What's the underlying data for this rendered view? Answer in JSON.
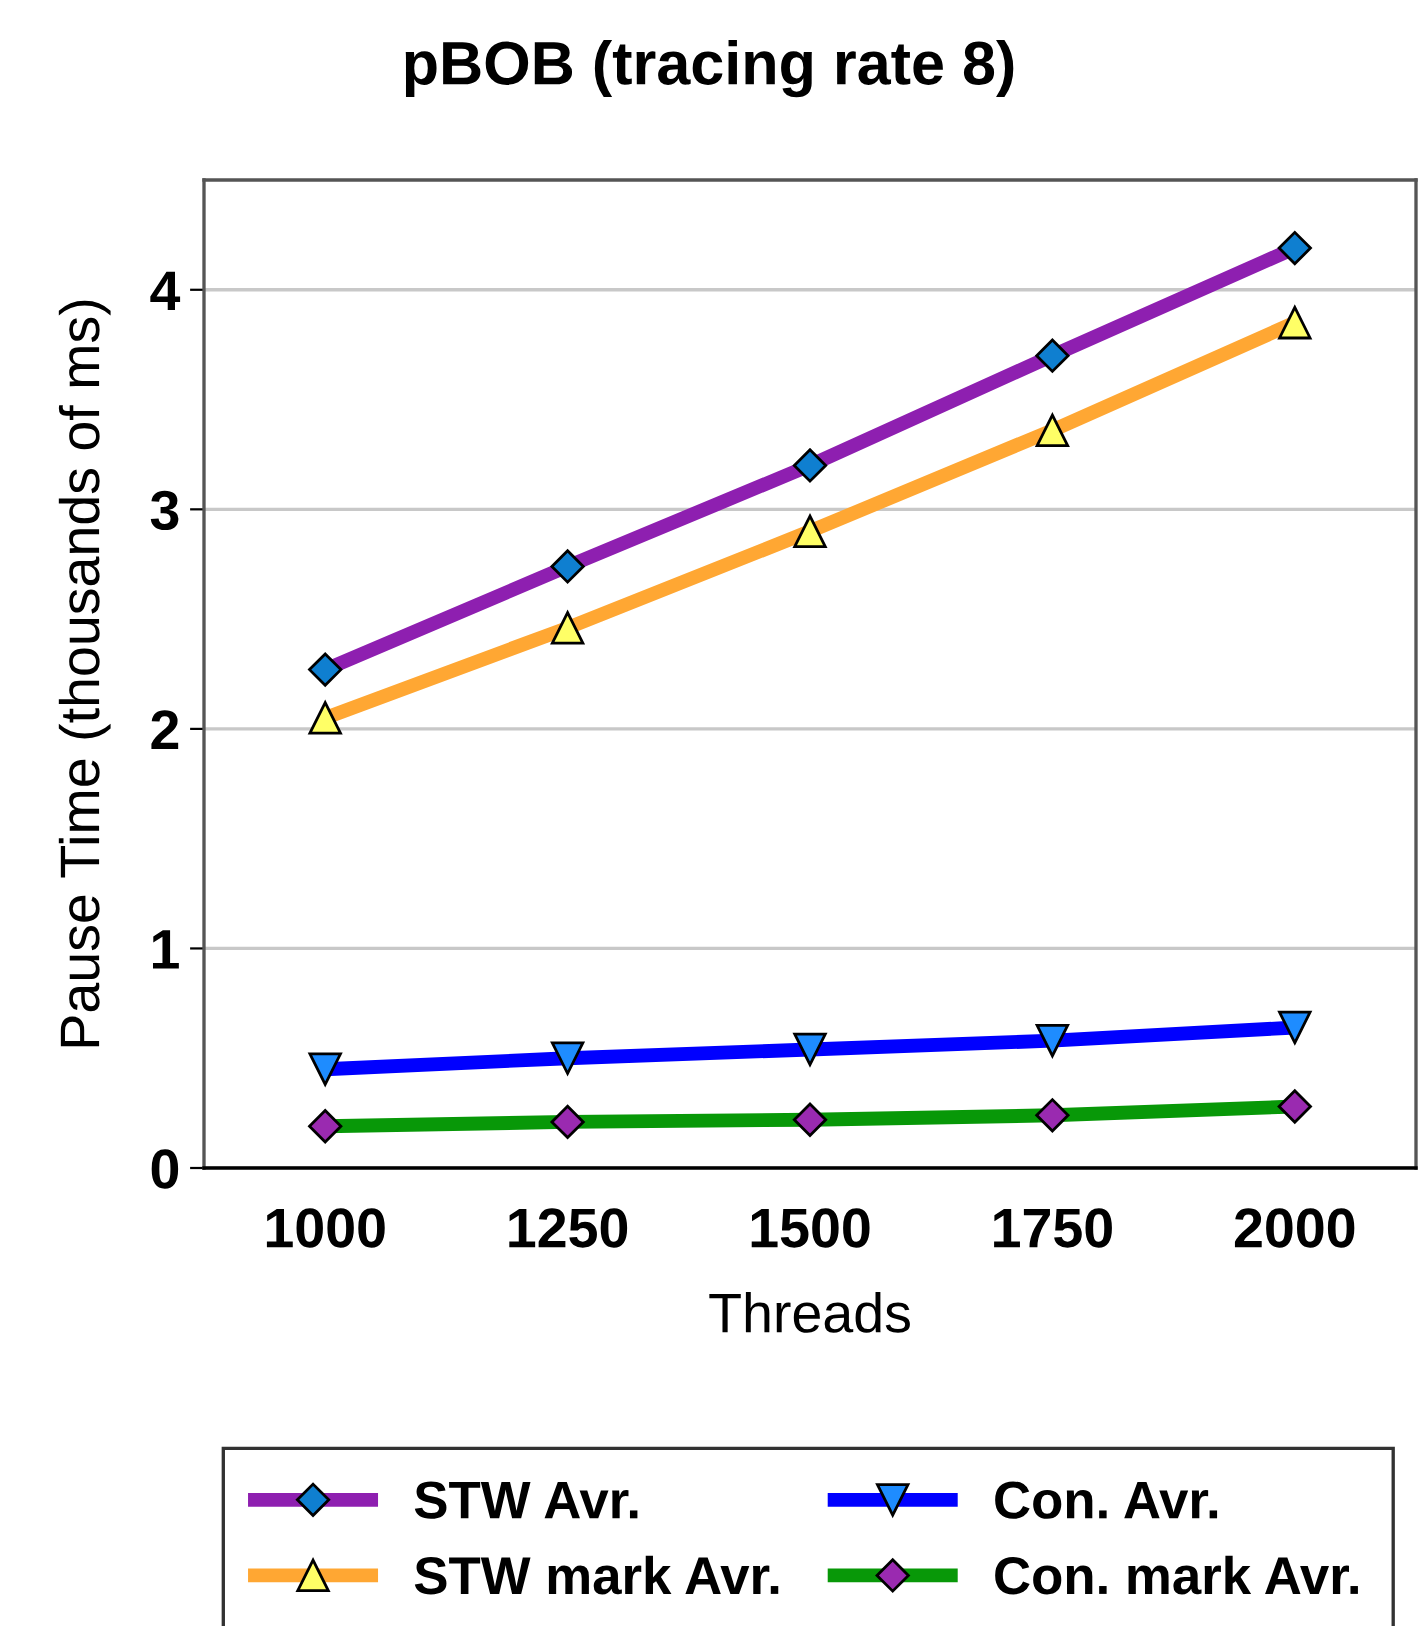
{
  "chart_data": {
    "type": "line",
    "title": "pBOB (tracing rate 8)",
    "xlabel": "Threads",
    "ylabel": "Pause Time (thousands of ms)",
    "categories": [
      "1000",
      "1250",
      "1500",
      "1750",
      "2000"
    ],
    "series": [
      {
        "name": "STW Avr.",
        "color": "#8e1fb0",
        "marker": "diamond",
        "colors": [
          "#0f7fd0",
          "#0f7fd0",
          "#0f7fd0",
          "#0f7fd0",
          "#0f7fd0"
        ],
        "values": [
          2.27,
          2.74,
          3.2,
          3.7,
          4.19
        ]
      },
      {
        "name": "STW mark Avr.",
        "color": "#ffa733",
        "marker": "triangle",
        "colors": [
          "#ffff66",
          "#ffff66",
          "#ffff66",
          "#ffff66",
          "#ffff66"
        ],
        "values": [
          2.05,
          2.46,
          2.9,
          3.36,
          3.85
        ]
      },
      {
        "name": "Con. Avr.",
        "color": "#0000ff",
        "marker": "triangle_down",
        "colors": [
          "#1e8cff",
          "#1e8cff",
          "#1e8cff",
          "#1e8cff",
          "#1e8cff"
        ],
        "values": [
          0.45,
          0.5,
          0.54,
          0.58,
          0.64
        ]
      },
      {
        "name": "Con. mark Avr.",
        "color": "#089808",
        "marker": "diamond",
        "colors": [
          "#9a2ab0",
          "#9a2ab0",
          "#9a2ab0",
          "#9a2ab0",
          "#9a2ab0"
        ],
        "values": [
          0.19,
          0.21,
          0.22,
          0.24,
          0.28
        ]
      }
    ],
    "ylim": [
      0,
      4.5
    ],
    "yticks": [
      0,
      1,
      2,
      3,
      4
    ],
    "grid": "y",
    "legend": "bottom"
  }
}
